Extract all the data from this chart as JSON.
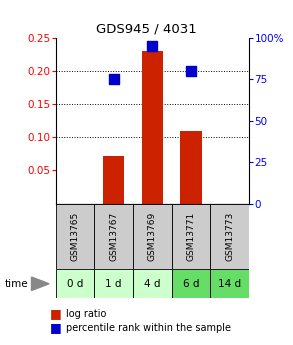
{
  "title": "GDS945 / 4031",
  "samples": [
    "GSM13765",
    "GSM13767",
    "GSM13769",
    "GSM13771",
    "GSM13773"
  ],
  "time_labels": [
    "0 d",
    "1 d",
    "4 d",
    "6 d",
    "14 d"
  ],
  "log_ratio": [
    0.0,
    0.072,
    0.23,
    0.11,
    0.0
  ],
  "percentile_rank": [
    0.0,
    75.0,
    95.0,
    80.0,
    0.0
  ],
  "bar_color": "#cc2200",
  "dot_color": "#0000cc",
  "left_ylim": [
    0.0,
    0.25
  ],
  "left_yticks": [
    0.05,
    0.1,
    0.15,
    0.2,
    0.25
  ],
  "right_ylim": [
    0.0,
    100.0
  ],
  "right_yticks": [
    0,
    25,
    50,
    75,
    100
  ],
  "right_yticklabels": [
    "0",
    "25",
    "50",
    "75",
    "100%"
  ],
  "grid_values": [
    0.1,
    0.15,
    0.2
  ],
  "sample_bg_color": "#cccccc",
  "time_bg_colors": [
    "#ccffcc",
    "#ccffcc",
    "#ccffcc",
    "#66dd66",
    "#66dd66"
  ],
  "legend_log_ratio": "log ratio",
  "legend_percentile": "percentile rank within the sample",
  "bar_width": 0.55,
  "dot_size": 55
}
